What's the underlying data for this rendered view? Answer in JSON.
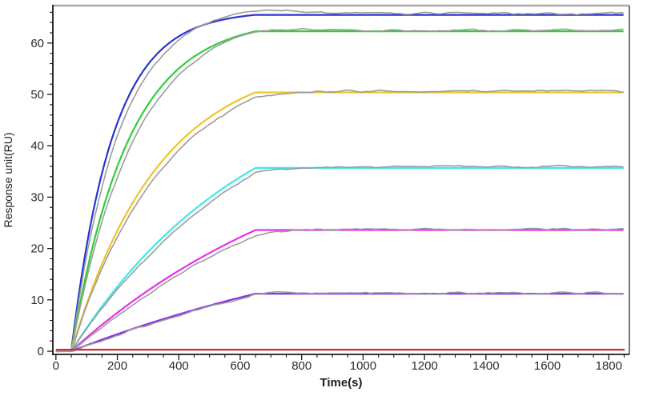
{
  "page": {
    "background": "#ffffff"
  },
  "chart_data": {
    "type": "line",
    "title": "",
    "xlabel": "Time(s)",
    "ylabel": "Response unit(RU)",
    "xlim": [
      -10,
      1867
    ],
    "ylim": [
      -0.62,
      67.3
    ],
    "x_major_ticks": [
      0,
      200,
      400,
      600,
      800,
      1000,
      1200,
      1400,
      1600,
      1800
    ],
    "x_minor_step": 50,
    "x_minor_max": 1850,
    "y_major_ticks": [
      0,
      10,
      20,
      30,
      40,
      50,
      60
    ],
    "y_minor_step": 2,
    "y_minor_max": 66,
    "grid": false,
    "legend": false,
    "association_start_s": 50,
    "association_end_s": 650,
    "trace_end_s": 1848,
    "baseline_end_s": 1852,
    "model": "R(t)=plateau*(1-exp(-k_obs*(t-t_start)))/(1-exp(-k_obs*(t_assoc_end-t_start))) during association (t_start..t_assoc_end); constant plateau afterwards; each colored fit is paired with a noisy gray raw-data trace",
    "raw_trace_color": "#9c9c9c",
    "axis_colors": {
      "left": "#1a1a1a",
      "bottom": "#1a1a1a",
      "top": "#a9a9a9",
      "right": "#555555"
    },
    "tick_label_color": "#2b2b2b",
    "sample_times_s": [
      100,
      200,
      300,
      400,
      500,
      600,
      650,
      1848
    ],
    "series": [
      {
        "name": "curve-blue",
        "color": "#2a35cf",
        "plateau_RU": 65.5,
        "k_obs": 0.0074,
        "sampled_RU": [
          20.5,
          44.4,
          55.8,
          61.3,
          63.9,
          65.1,
          65.5,
          65.5
        ],
        "raw": {
          "lag": 0.88,
          "corner_gap": 0.0,
          "plateau_offset": 0.3,
          "overshoot": 0.9,
          "overshoot_center": 550,
          "overshoot_width": 260,
          "seed": 3
        }
      },
      {
        "name": "curve-green",
        "color": "#2fce3a",
        "plateau_RU": 62.3,
        "k_obs": 0.0054,
        "sampled_RU": [
          15.3,
          36.0,
          48.0,
          55.0,
          59.1,
          61.5,
          62.3,
          62.3
        ],
        "raw": {
          "lag": 0.9,
          "corner_gap": 0.3,
          "plateau_offset": 0.2,
          "overshoot": 0.35,
          "overshoot_center": 640,
          "overshoot_width": 220,
          "seed": 5
        }
      },
      {
        "name": "curve-gold",
        "color": "#f0c525",
        "plateau_RU": 50.4,
        "k_obs": 0.0035,
        "sampled_RU": [
          9.2,
          23.3,
          33.3,
          40.3,
          45.3,
          48.8,
          50.4,
          50.4
        ],
        "raw": {
          "lag": 0.93,
          "corner_gap": 1.0,
          "plateau_offset": 0.25,
          "overshoot": 0,
          "overshoot_center": 0,
          "overshoot_width": 1,
          "seed": 7
        }
      },
      {
        "name": "curve-cyan",
        "color": "#3de9e9",
        "plateau_RU": 35.7,
        "k_obs": 0.0017,
        "sampled_RU": [
          4.5,
          12.4,
          19.1,
          24.8,
          29.6,
          33.6,
          35.7,
          35.7
        ],
        "raw": {
          "lag": 0.93,
          "corner_gap": 1.0,
          "plateau_offset": 0.25,
          "overshoot": 0,
          "overshoot_center": 0,
          "overshoot_width": 1,
          "seed": 11
        }
      },
      {
        "name": "curve-magenta",
        "color": "#ea30e8",
        "plateau_RU": 23.6,
        "k_obs": 0.00115,
        "sampled_RU": [
          2.6,
          7.4,
          11.7,
          15.5,
          18.9,
          21.9,
          23.6,
          23.6
        ],
        "raw": {
          "lag": 0.92,
          "corner_gap": 1.0,
          "plateau_offset": 0.2,
          "overshoot": 0,
          "overshoot_center": 0,
          "overshoot_width": 1,
          "seed": 13
        }
      },
      {
        "name": "curve-violet",
        "color": "#8b2fe3",
        "plateau_RU": 11.2,
        "k_obs": 0.0008,
        "sampled_RU": [
          1.1,
          3.3,
          5.3,
          7.1,
          8.8,
          10.3,
          11.2,
          11.2
        ],
        "raw": {
          "lag": 0.95,
          "corner_gap": 0.3,
          "plateau_offset": 0.15,
          "overshoot": 0.35,
          "overshoot_center": 700,
          "overshoot_width": 90,
          "seed": 17
        }
      },
      {
        "name": "baseline-red",
        "color": "#cd2b35",
        "plateau_RU": 0.3,
        "k_obs": 0,
        "sampled_RU": [
          0.3,
          0.3,
          0.3,
          0.3,
          0.3,
          0.3,
          0.3,
          0.3
        ],
        "raw": null
      }
    ]
  }
}
